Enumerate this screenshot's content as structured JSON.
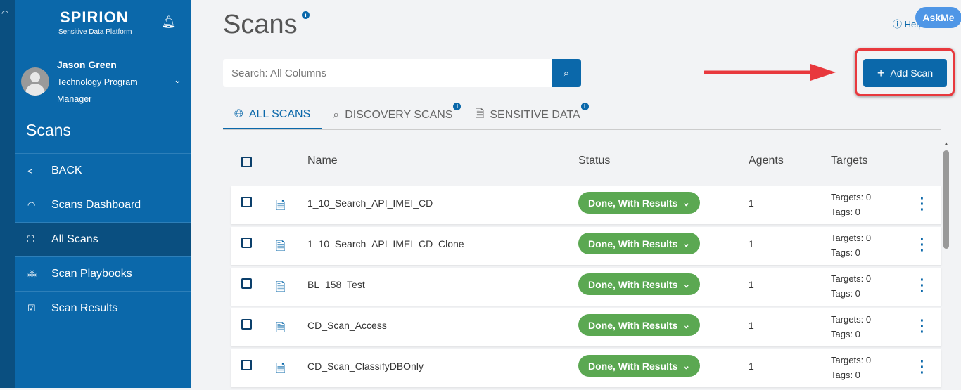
{
  "sidebar": {
    "brand": "SPIRION",
    "tagline": "Sensitive Data Platform",
    "user": {
      "name": "Jason Green",
      "role": "Technology Program Manager"
    },
    "section_title": "Scans",
    "items": [
      {
        "label": "BACK",
        "icon": "chevron-left-icon"
      },
      {
        "label": "Scans Dashboard",
        "icon": "gauge-icon"
      },
      {
        "label": "All Scans",
        "icon": "scan-icon",
        "active": true
      },
      {
        "label": "Scan Playbooks",
        "icon": "playbook-icon"
      },
      {
        "label": "Scan Results",
        "icon": "check-square-icon"
      }
    ]
  },
  "header": {
    "title": "Scans",
    "help": "Help",
    "askme": "AskMe"
  },
  "search": {
    "placeholder": "Search: All Columns"
  },
  "add_scan": "Add Scan",
  "tabs": [
    {
      "label": "ALL SCANS",
      "active": true
    },
    {
      "label": "DISCOVERY SCANS"
    },
    {
      "label": "SENSITIVE DATA"
    }
  ],
  "table": {
    "columns": [
      "Name",
      "Status",
      "Agents",
      "Targets"
    ],
    "rows": [
      {
        "name": "1_10_Search_API_IMEI_CD",
        "status": "Done, With Results",
        "agents": "1",
        "targets": "Targets: 0",
        "tags": "Tags: 0"
      },
      {
        "name": "1_10_Search_API_IMEI_CD_Clone",
        "status": "Done, With Results",
        "agents": "1",
        "targets": "Targets: 0",
        "tags": "Tags: 0"
      },
      {
        "name": "BL_158_Test",
        "status": "Done, With Results",
        "agents": "1",
        "targets": "Targets: 0",
        "tags": "Tags: 0"
      },
      {
        "name": "CD_Scan_Access",
        "status": "Done, With Results",
        "agents": "1",
        "targets": "Targets: 0",
        "tags": "Tags: 0"
      },
      {
        "name": "CD_Scan_ClassifyDBOnly",
        "status": "Done, With Results",
        "agents": "1",
        "targets": "Targets: 0",
        "tags": "Tags: 0"
      }
    ]
  },
  "colors": {
    "primary": "#0b68aa",
    "sidebar_dark": "#0a4f80",
    "status_done": "#5ba852",
    "highlight": "#e8383d",
    "askme": "#4f96e6"
  }
}
